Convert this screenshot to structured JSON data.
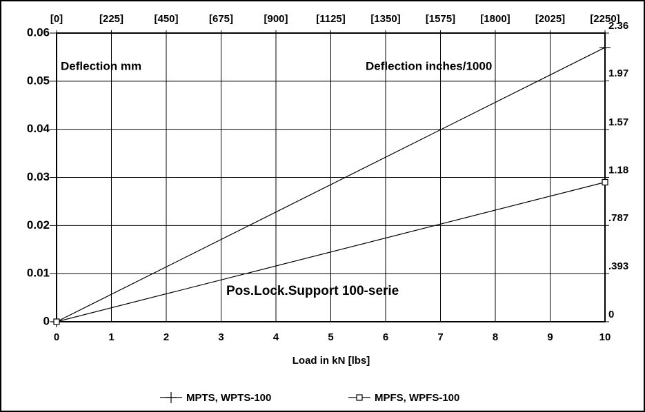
{
  "chart_data": {
    "type": "line",
    "annotations": [
      "Deflection mm",
      "Deflection inches/1000",
      "Pos.Lock.Support 100-serie"
    ],
    "x_label": "Load in kN [lbs]",
    "xlim": [
      0,
      10
    ],
    "xticks": [
      0,
      1,
      2,
      3,
      4,
      5,
      6,
      7,
      8,
      9,
      10
    ],
    "x2lim": [
      0,
      2250
    ],
    "x2ticks": [
      {
        "value": 0,
        "label": "[0]"
      },
      {
        "value": 225,
        "label": "[225]"
      },
      {
        "value": 450,
        "label": "[450]"
      },
      {
        "value": 675,
        "label": "[675]"
      },
      {
        "value": 900,
        "label": "[900]"
      },
      {
        "value": 1125,
        "label": "[1125]"
      },
      {
        "value": 1350,
        "label": "[1350]"
      },
      {
        "value": 1575,
        "label": "[1575]"
      },
      {
        "value": 1800,
        "label": "[1800]"
      },
      {
        "value": 2025,
        "label": "[2025]"
      },
      {
        "value": 2250,
        "label": "[2250]"
      }
    ],
    "ylim": [
      0,
      0.06
    ],
    "yticks": [
      0,
      0.01,
      0.02,
      0.03,
      0.04,
      0.05,
      0.06
    ],
    "y2lim": [
      0,
      2.36
    ],
    "y2ticks": [
      0,
      {
        "value": 0.393,
        "label": ".393"
      },
      {
        "value": 0.787,
        "label": ".787"
      },
      1.18,
      1.57,
      1.97,
      2.36
    ],
    "grid": true,
    "legend": "bottom",
    "series": [
      {
        "name": "MPTS, WPTS-100",
        "color": "#000000",
        "marker": "plus",
        "x": [
          0,
          10
        ],
        "values": [
          0,
          0.057
        ]
      },
      {
        "name": "MPFS, WPFS-100",
        "color": "#000000",
        "marker": "square",
        "x": [
          0,
          10
        ],
        "values": [
          0,
          0.029
        ]
      }
    ]
  }
}
